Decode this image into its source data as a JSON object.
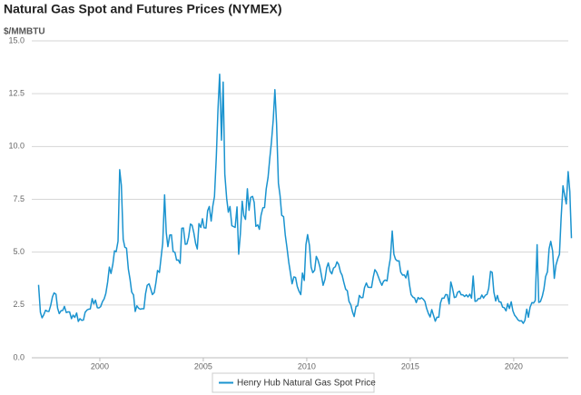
{
  "chart_data": {
    "type": "line",
    "title": "Natural Gas Spot and Futures Prices (NYMEX)",
    "y_label": "$/MMBTU",
    "x": [
      1997.04,
      1997.13,
      1997.21,
      1997.29,
      1997.38,
      1997.46,
      1997.54,
      1997.63,
      1997.71,
      1997.79,
      1997.88,
      1997.96,
      1998.04,
      1998.13,
      1998.21,
      1998.29,
      1998.38,
      1998.46,
      1998.54,
      1998.63,
      1998.71,
      1998.79,
      1998.88,
      1998.96,
      1999.04,
      1999.13,
      1999.21,
      1999.29,
      1999.38,
      1999.46,
      1999.54,
      1999.63,
      1999.71,
      1999.79,
      1999.88,
      1999.96,
      2000.04,
      2000.13,
      2000.21,
      2000.29,
      2000.38,
      2000.46,
      2000.54,
      2000.63,
      2000.71,
      2000.79,
      2000.88,
      2000.96,
      2001.04,
      2001.13,
      2001.21,
      2001.29,
      2001.38,
      2001.46,
      2001.54,
      2001.63,
      2001.71,
      2001.79,
      2001.88,
      2001.96,
      2002.04,
      2002.13,
      2002.21,
      2002.29,
      2002.38,
      2002.46,
      2002.54,
      2002.63,
      2002.71,
      2002.79,
      2002.88,
      2002.96,
      2003.04,
      2003.13,
      2003.21,
      2003.29,
      2003.38,
      2003.46,
      2003.54,
      2003.63,
      2003.71,
      2003.79,
      2003.88,
      2003.96,
      2004.04,
      2004.13,
      2004.21,
      2004.29,
      2004.38,
      2004.46,
      2004.54,
      2004.63,
      2004.71,
      2004.79,
      2004.88,
      2004.96,
      2005.04,
      2005.13,
      2005.21,
      2005.29,
      2005.38,
      2005.46,
      2005.54,
      2005.63,
      2005.71,
      2005.79,
      2005.88,
      2005.96,
      2006.04,
      2006.13,
      2006.21,
      2006.29,
      2006.38,
      2006.46,
      2006.54,
      2006.63,
      2006.71,
      2006.79,
      2006.88,
      2006.96,
      2007.04,
      2007.13,
      2007.21,
      2007.29,
      2007.38,
      2007.46,
      2007.54,
      2007.63,
      2007.71,
      2007.79,
      2007.88,
      2007.96,
      2008.04,
      2008.13,
      2008.21,
      2008.29,
      2008.38,
      2008.46,
      2008.54,
      2008.63,
      2008.71,
      2008.79,
      2008.88,
      2008.96,
      2009.04,
      2009.13,
      2009.21,
      2009.29,
      2009.38,
      2009.46,
      2009.54,
      2009.63,
      2009.71,
      2009.79,
      2009.88,
      2009.96,
      2010.04,
      2010.13,
      2010.21,
      2010.29,
      2010.38,
      2010.46,
      2010.54,
      2010.63,
      2010.71,
      2010.79,
      2010.88,
      2010.96,
      2011.04,
      2011.13,
      2011.21,
      2011.29,
      2011.38,
      2011.46,
      2011.54,
      2011.63,
      2011.71,
      2011.79,
      2011.88,
      2011.96,
      2012.04,
      2012.13,
      2012.21,
      2012.29,
      2012.38,
      2012.46,
      2012.54,
      2012.63,
      2012.71,
      2012.79,
      2012.88,
      2012.96,
      2013.04,
      2013.13,
      2013.21,
      2013.29,
      2013.38,
      2013.46,
      2013.54,
      2013.63,
      2013.71,
      2013.79,
      2013.88,
      2013.96,
      2014.04,
      2014.13,
      2014.21,
      2014.29,
      2014.38,
      2014.46,
      2014.54,
      2014.63,
      2014.71,
      2014.79,
      2014.88,
      2014.96,
      2015.04,
      2015.13,
      2015.21,
      2015.29,
      2015.38,
      2015.46,
      2015.54,
      2015.63,
      2015.71,
      2015.79,
      2015.88,
      2015.96,
      2016.04,
      2016.13,
      2016.21,
      2016.29,
      2016.38,
      2016.46,
      2016.54,
      2016.63,
      2016.71,
      2016.79,
      2016.88,
      2016.96,
      2017.04,
      2017.13,
      2017.21,
      2017.29,
      2017.38,
      2017.46,
      2017.54,
      2017.63,
      2017.71,
      2017.79,
      2017.88,
      2017.96,
      2018.04,
      2018.13,
      2018.21,
      2018.29,
      2018.38,
      2018.46,
      2018.54,
      2018.63,
      2018.71,
      2018.79,
      2018.88,
      2018.96,
      2019.04,
      2019.13,
      2019.21,
      2019.29,
      2019.38,
      2019.46,
      2019.54,
      2019.63,
      2019.71,
      2019.79,
      2019.88,
      2019.96,
      2020.04,
      2020.13,
      2020.21,
      2020.29,
      2020.38,
      2020.46,
      2020.54,
      2020.63,
      2020.71,
      2020.79,
      2020.88,
      2020.96,
      2021.04,
      2021.13,
      2021.21,
      2021.29,
      2021.38,
      2021.46,
      2021.54,
      2021.63,
      2021.71,
      2021.79,
      2021.88,
      2021.96,
      2022.04,
      2022.13,
      2022.21,
      2022.29,
      2022.38,
      2022.46,
      2022.54,
      2022.63,
      2022.71,
      2022.79
    ],
    "series": [
      {
        "name": "Henry Hub Natural Gas Spot Price",
        "color": "#1a93cf",
        "values": [
          3.45,
          2.15,
          1.89,
          2.03,
          2.25,
          2.2,
          2.19,
          2.49,
          2.88,
          3.07,
          3.01,
          2.35,
          2.09,
          2.23,
          2.24,
          2.43,
          2.14,
          2.17,
          2.17,
          1.85,
          2.02,
          1.91,
          2.12,
          1.72,
          1.85,
          1.77,
          1.79,
          2.15,
          2.26,
          2.3,
          2.31,
          2.8,
          2.55,
          2.73,
          2.37,
          2.36,
          2.42,
          2.66,
          2.79,
          3.04,
          3.59,
          4.29,
          3.99,
          4.43,
          5.06,
          5.02,
          5.52,
          8.9,
          8.17,
          5.61,
          5.23,
          5.19,
          4.19,
          3.72,
          3.11,
          2.97,
          2.19,
          2.46,
          2.34,
          2.3,
          2.32,
          2.32,
          3.03,
          3.43,
          3.5,
          3.26,
          2.99,
          3.09,
          3.55,
          4.13,
          4.04,
          4.74,
          5.43,
          7.71,
          5.93,
          5.26,
          5.81,
          5.82,
          5.03,
          4.99,
          4.62,
          4.63,
          4.47,
          6.13,
          6.14,
          5.37,
          5.39,
          5.71,
          6.33,
          6.27,
          5.93,
          5.41,
          5.15,
          6.35,
          6.17,
          6.58,
          6.15,
          6.14,
          6.96,
          7.16,
          6.47,
          7.18,
          7.63,
          9.53,
          11.75,
          13.42,
          10.3,
          13.05,
          8.69,
          7.54,
          6.89,
          7.16,
          6.25,
          6.21,
          6.17,
          7.14,
          4.9,
          5.85,
          7.41,
          6.73,
          6.55,
          8.0,
          6.98,
          7.59,
          7.64,
          7.35,
          6.22,
          6.29,
          6.08,
          6.74,
          7.1,
          7.11,
          7.99,
          8.54,
          9.41,
          10.18,
          11.27,
          12.69,
          11.09,
          8.26,
          7.67,
          6.74,
          6.68,
          5.82,
          5.24,
          4.52,
          4.02,
          3.5,
          3.83,
          3.8,
          3.38,
          3.14,
          2.99,
          4.01,
          3.66,
          5.35,
          5.83,
          5.32,
          4.29,
          4.03,
          4.14,
          4.8,
          4.63,
          4.32,
          3.89,
          3.43,
          3.71,
          4.25,
          4.49,
          4.09,
          3.97,
          4.24,
          4.31,
          4.54,
          4.42,
          4.06,
          3.9,
          3.57,
          3.24,
          3.17,
          2.67,
          2.5,
          2.17,
          1.95,
          2.43,
          2.46,
          2.95,
          2.84,
          2.85,
          3.32,
          3.54,
          3.34,
          3.33,
          3.33,
          3.81,
          4.17,
          4.04,
          3.83,
          3.62,
          3.43,
          3.62,
          3.68,
          3.64,
          4.24,
          4.71,
          6.0,
          4.9,
          4.66,
          4.58,
          4.59,
          4.05,
          3.91,
          3.92,
          3.78,
          4.12,
          3.48,
          2.99,
          2.87,
          2.83,
          2.61,
          2.85,
          2.78,
          2.84,
          2.77,
          2.66,
          2.34,
          2.09,
          1.93,
          2.28,
          1.99,
          1.73,
          1.92,
          1.92,
          2.59,
          2.82,
          2.82,
          2.99,
          2.98,
          2.55,
          3.59,
          3.3,
          2.85,
          2.88,
          3.1,
          3.15,
          2.98,
          2.98,
          2.9,
          2.98,
          2.88,
          3.01,
          2.82,
          3.87,
          2.67,
          2.69,
          2.8,
          2.8,
          2.97,
          2.83,
          2.96,
          3.0,
          3.28,
          4.09,
          4.04,
          3.11,
          2.69,
          2.95,
          2.65,
          2.64,
          2.4,
          2.37,
          2.22,
          2.56,
          2.33,
          2.65,
          2.22,
          2.02,
          1.91,
          1.79,
          1.74,
          1.75,
          1.63,
          1.77,
          2.3,
          1.92,
          2.39,
          2.61,
          2.59,
          2.71,
          5.35,
          2.62,
          2.66,
          2.91,
          3.26,
          3.84,
          4.07,
          5.16,
          5.51,
          5.05,
          3.76,
          4.38,
          4.69,
          4.9,
          6.6,
          8.14,
          7.7,
          7.28,
          8.81,
          7.88,
          5.66
        ]
      }
    ],
    "xlim": [
      1996.8,
      2022.9
    ],
    "xticks": [
      2000,
      2005,
      2010,
      2015,
      2020
    ],
    "ylim": [
      0,
      15
    ],
    "yticks": [
      {
        "value": 0,
        "label": "0.0"
      },
      2.5,
      {
        "value": 5,
        "label": "5.0"
      },
      7.5,
      {
        "value": 10,
        "label": "10.0"
      },
      12.5,
      {
        "value": 15,
        "label": "15.0"
      }
    ],
    "grid": true,
    "legend": "bottom"
  }
}
